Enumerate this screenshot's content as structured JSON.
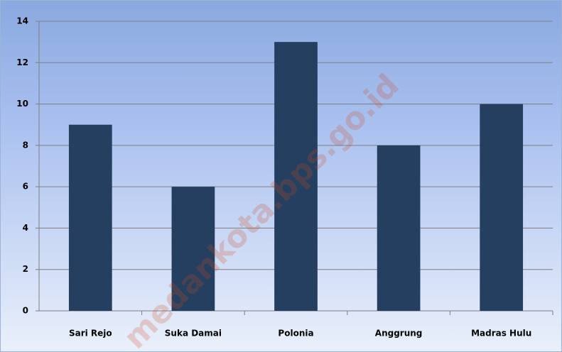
{
  "chart_data": {
    "type": "bar",
    "categories": [
      "Sari Rejo",
      "Suka Damai",
      "Polonia",
      "Anggrung",
      "Madras Hulu"
    ],
    "values": [
      9,
      6,
      13,
      8,
      10
    ],
    "color": "#243f60",
    "ylim": [
      0,
      14
    ],
    "yticks": [
      0,
      2,
      4,
      6,
      8,
      10,
      12,
      14
    ],
    "grid": true,
    "watermark": "medankota.bps.go.id"
  }
}
